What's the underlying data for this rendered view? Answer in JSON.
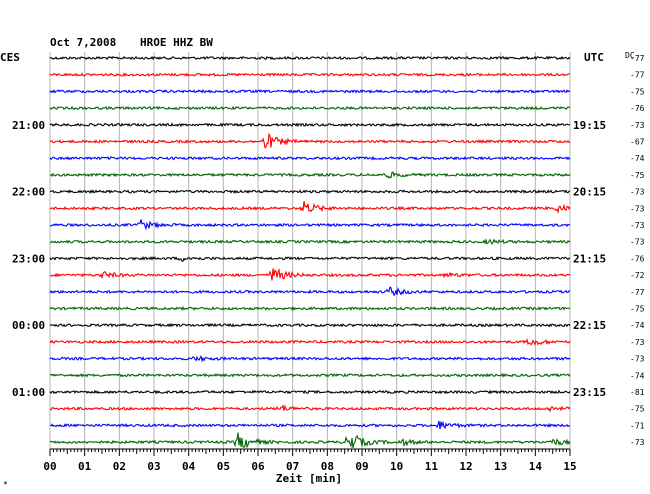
{
  "header": {
    "date": "Oct 7,2008",
    "station": "HROE HHZ BW",
    "left_zone": "CES",
    "right_zone": "UTC",
    "dc_label": "DC"
  },
  "xaxis": {
    "label": "Zeit [min]",
    "ticks": [
      "00",
      "01",
      "02",
      "03",
      "04",
      "05",
      "06",
      "07",
      "08",
      "09",
      "10",
      "11",
      "12",
      "13",
      "14",
      "15"
    ]
  },
  "trace_colors": [
    "#000000",
    "#ff0000",
    "#0000ff",
    "#006400"
  ],
  "left_time_labels": [
    {
      "row": 4,
      "text": "21:00"
    },
    {
      "row": 8,
      "text": "22:00"
    },
    {
      "row": 12,
      "text": "23:00"
    },
    {
      "row": 16,
      "text": "00:00"
    },
    {
      "row": 20,
      "text": "01:00"
    }
  ],
  "right_time_labels": [
    {
      "row": 4,
      "text": "19:15"
    },
    {
      "row": 8,
      "text": "20:15"
    },
    {
      "row": 12,
      "text": "21:15"
    },
    {
      "row": 16,
      "text": "22:15"
    },
    {
      "row": 20,
      "text": "23:15"
    }
  ],
  "dc_offsets": [
    "-77",
    "-77",
    "-75",
    "-76",
    "-73",
    "-67",
    "-74",
    "-75",
    "-73",
    "-73",
    "-73",
    "-73",
    "-76",
    "-72",
    "-77",
    "-75",
    "-74",
    "-73",
    "-73",
    "-74",
    "-81",
    "-75",
    "-71",
    "-73"
  ],
  "events": [
    {
      "row": 5,
      "minute": 6.2,
      "amplitude": 9
    },
    {
      "row": 7,
      "minute": 9.7,
      "amplitude": 3
    },
    {
      "row": 9,
      "minute": 7.3,
      "amplitude": 7
    },
    {
      "row": 9,
      "minute": 14.6,
      "amplitude": 4
    },
    {
      "row": 10,
      "minute": 2.6,
      "amplitude": 5
    },
    {
      "row": 11,
      "minute": 12.6,
      "amplitude": 2
    },
    {
      "row": 12,
      "minute": 3.8,
      "amplitude": 2
    },
    {
      "row": 13,
      "minute": 1.5,
      "amplitude": 3
    },
    {
      "row": 13,
      "minute": 6.4,
      "amplitude": 8
    },
    {
      "row": 13,
      "minute": 11.4,
      "amplitude": 2
    },
    {
      "row": 14,
      "minute": 9.8,
      "amplitude": 4
    },
    {
      "row": 17,
      "minute": 13.8,
      "amplitude": 4
    },
    {
      "row": 18,
      "minute": 4.2,
      "amplitude": 2
    },
    {
      "row": 21,
      "minute": 6.6,
      "amplitude": 3
    },
    {
      "row": 21,
      "minute": 14.4,
      "amplitude": 2
    },
    {
      "row": 22,
      "minute": 11.2,
      "amplitude": 4
    },
    {
      "row": 23,
      "minute": 5.4,
      "amplitude": 9
    },
    {
      "row": 23,
      "minute": 8.6,
      "amplitude": 11
    },
    {
      "row": 23,
      "minute": 10.1,
      "amplitude": 3
    },
    {
      "row": 23,
      "minute": 14.5,
      "amplitude": 3
    }
  ],
  "corner_mark": "*"
}
